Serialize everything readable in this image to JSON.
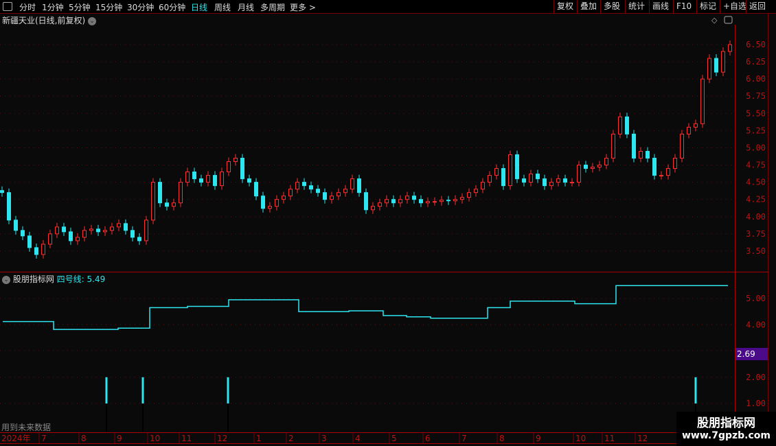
{
  "topbar": {
    "tabs": [
      "分时",
      "1分钟",
      "5分钟",
      "15分钟",
      "30分钟",
      "60分钟",
      "日线",
      "周线",
      "月线",
      "多周期",
      "更多 >"
    ],
    "active": "日线",
    "right_buttons": [
      "复权",
      "叠加",
      "多股",
      "统计",
      "画线",
      "F10",
      "标记",
      "+自选",
      "返回"
    ]
  },
  "stock_title": "新疆天业(日线,前复权)",
  "indicator": {
    "name": "股朋指标网",
    "line_label": "四号线: 5.49",
    "current_marker": "2.69",
    "note": "用到未来数据"
  },
  "watermark": {
    "line1": "股朋指标网",
    "line2": "www.7gpzb.com"
  },
  "colors": {
    "up": "#ff3030",
    "down": "#2ee6f0",
    "axis": "#cc1010",
    "line": "#2ee6f0",
    "marker_bg": "#4a0a8a"
  },
  "chart_data": [
    {
      "type": "candlestick",
      "yticks": [
        "6.50",
        "6.25",
        "6.00",
        "5.75",
        "5.50",
        "5.25",
        "5.00",
        "4.75",
        "4.50",
        "4.25",
        "4.00",
        "3.75",
        "3.50"
      ],
      "ylim": [
        3.4,
        6.8
      ],
      "x_labels": [
        "2024年",
        "7",
        "8",
        "9",
        "10",
        "11",
        "12",
        "1",
        "2",
        "3",
        "4",
        "5",
        "6",
        "7",
        "8",
        "9",
        "10",
        "11",
        "12"
      ],
      "closes": [
        4.35,
        3.95,
        3.8,
        3.72,
        3.55,
        3.45,
        3.6,
        3.75,
        3.85,
        3.78,
        3.65,
        3.7,
        3.8,
        3.82,
        3.78,
        3.8,
        3.85,
        3.9,
        3.8,
        3.7,
        3.65,
        3.95,
        4.5,
        4.2,
        4.15,
        4.2,
        4.5,
        4.65,
        4.55,
        4.5,
        4.6,
        4.45,
        4.65,
        4.8,
        4.85,
        4.55,
        4.5,
        4.3,
        4.12,
        4.15,
        4.25,
        4.3,
        4.4,
        4.5,
        4.45,
        4.4,
        4.35,
        4.25,
        4.3,
        4.35,
        4.4,
        4.55,
        4.35,
        4.1,
        4.15,
        4.2,
        4.25,
        4.2,
        4.25,
        4.3,
        4.25,
        4.2,
        4.22,
        4.22,
        4.24,
        4.23,
        4.25,
        4.28,
        4.35,
        4.4,
        4.5,
        4.6,
        4.7,
        4.45,
        4.9,
        4.55,
        4.5,
        4.62,
        4.55,
        4.45,
        4.5,
        4.55,
        4.5,
        4.5,
        4.75,
        4.7,
        4.72,
        4.75,
        4.85,
        5.2,
        5.45,
        5.2,
        4.85,
        4.95,
        4.85,
        4.6,
        4.6,
        4.7,
        4.85,
        5.2,
        5.3,
        5.35,
        6.0,
        6.3,
        6.1,
        6.4,
        6.5
      ]
    },
    {
      "type": "step-line",
      "series_name": "四号线",
      "yticks": [
        "5.00",
        "4.00",
        "2.00",
        "1.00"
      ],
      "ylim": [
        0.8,
        5.8
      ],
      "steps": [
        4.12,
        3.82,
        3.87,
        4.65,
        4.7,
        4.95,
        4.5,
        4.53,
        4.35,
        4.3,
        4.25,
        4.65,
        4.9,
        4.8,
        5.49
      ],
      "signal_value": [
        1,
        2
      ]
    }
  ]
}
